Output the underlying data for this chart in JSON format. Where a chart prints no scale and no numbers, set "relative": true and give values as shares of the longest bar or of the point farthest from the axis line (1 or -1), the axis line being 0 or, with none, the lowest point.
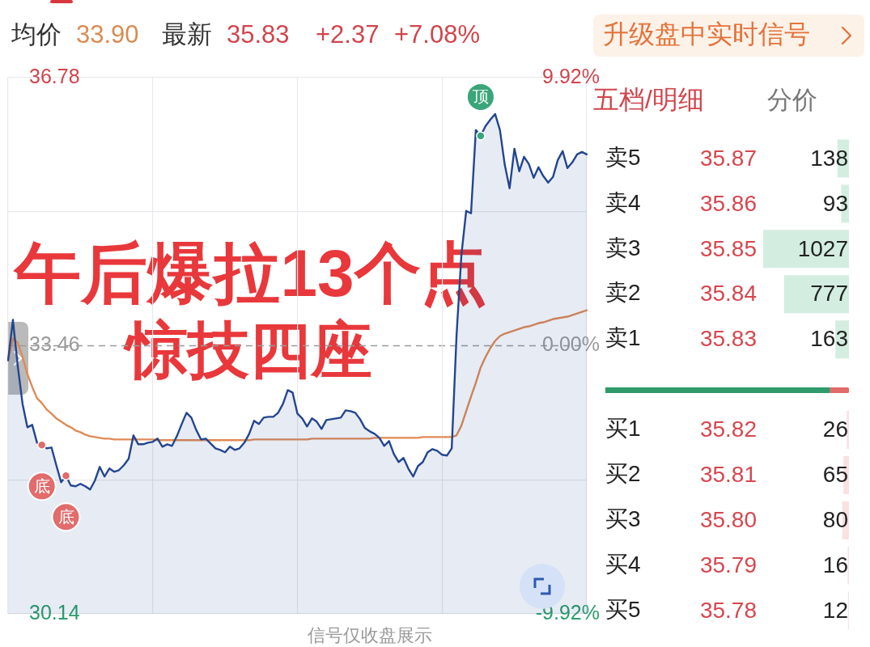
{
  "chart_data": [
    {
      "type": "line",
      "title": "午后爆拉13个点",
      "subtitle": "惊技四座",
      "categories": [
        null,
        null,
        null,
        null,
        null,
        null,
        null,
        null,
        null,
        null,
        null,
        null,
        null,
        null,
        null,
        null,
        null,
        null,
        null,
        null,
        null,
        null,
        null,
        null,
        null,
        null,
        null,
        null,
        null,
        null,
        null,
        null,
        null,
        null,
        null,
        null,
        null,
        null,
        null,
        null,
        null,
        null,
        null,
        null,
        null,
        null,
        null,
        null,
        null,
        null,
        null,
        null,
        null,
        null,
        null,
        null,
        null,
        null,
        null,
        null,
        null,
        null,
        null,
        null,
        null,
        null,
        null,
        null,
        null,
        null,
        null,
        null,
        null,
        null,
        null,
        null,
        null,
        null,
        null,
        null,
        null,
        null,
        null,
        null,
        null,
        null,
        null,
        null,
        null,
        null,
        null,
        null,
        null,
        null,
        null,
        null,
        null,
        null,
        null,
        null,
        null,
        null,
        null,
        null,
        null,
        null,
        null,
        null,
        null,
        null,
        null,
        null,
        null,
        null,
        null,
        null,
        null,
        null,
        null,
        null,
        null
      ],
      "series": [
        {
          "type": "area",
          "color": "#23468f",
          "values": [
            33.28,
            33.78,
            33.21,
            32.74,
            32.45,
            32.48,
            32.26,
            32.23,
            32.19,
            32.2,
            31.98,
            31.77,
            31.85,
            31.73,
            31.72,
            31.75,
            31.72,
            31.68,
            31.79,
            31.96,
            31.84,
            31.94,
            31.9,
            31.92,
            31.98,
            32.06,
            32.35,
            32.24,
            32.24,
            32.26,
            32.27,
            32.31,
            32.21,
            32.24,
            32.22,
            32.34,
            32.49,
            32.63,
            32.57,
            32.42,
            32.3,
            32.31,
            32.25,
            32.19,
            32.17,
            32.14,
            32.21,
            32.17,
            32.19,
            32.26,
            32.37,
            32.53,
            32.49,
            32.57,
            32.58,
            32.58,
            32.63,
            32.74,
            32.91,
            32.88,
            32.62,
            32.56,
            32.46,
            32.56,
            32.52,
            32.43,
            32.54,
            32.55,
            32.56,
            32.57,
            32.66,
            32.65,
            32.63,
            32.55,
            32.44,
            32.4,
            32.37,
            32.32,
            32.22,
            32.28,
            32.12,
            32.02,
            32.07,
            31.94,
            31.84,
            31.97,
            32.02,
            32.14,
            32.18,
            32.16,
            32.11,
            32.1,
            32.19,
            33.59,
            34.58,
            35.13,
            35.1,
            36.13,
            36.06,
            36.18,
            36.26,
            36.33,
            36.13,
            35.7,
            35.41,
            35.9,
            35.62,
            35.8,
            35.71,
            35.54,
            35.67,
            35.56,
            35.48,
            35.55,
            35.76,
            35.87,
            35.66,
            35.73,
            35.83,
            35.86,
            35.83
          ]
        },
        {
          "color": "#e08a55",
          "values": [
            33.28,
            33.55,
            33.5,
            33.32,
            33.11,
            32.95,
            32.81,
            32.75,
            32.67,
            32.62,
            32.56,
            32.52,
            32.48,
            32.45,
            32.41,
            32.39,
            32.36,
            32.34,
            32.33,
            32.32,
            32.31,
            32.31,
            32.3,
            32.3,
            32.3,
            32.3,
            32.3,
            32.3,
            32.3,
            32.3,
            32.3,
            32.29,
            32.29,
            32.29,
            32.29,
            32.29,
            32.29,
            32.29,
            32.29,
            32.29,
            32.29,
            32.29,
            32.29,
            32.29,
            32.29,
            32.29,
            32.29,
            32.29,
            32.29,
            32.29,
            32.29,
            32.3,
            32.3,
            32.3,
            32.3,
            32.3,
            32.3,
            32.3,
            32.3,
            32.3,
            32.3,
            32.3,
            32.3,
            32.31,
            32.31,
            32.31,
            32.31,
            32.31,
            32.31,
            32.31,
            32.31,
            32.31,
            32.31,
            32.31,
            32.31,
            32.31,
            32.32,
            32.32,
            32.32,
            32.32,
            32.32,
            32.32,
            32.32,
            32.32,
            32.32,
            32.32,
            32.33,
            32.33,
            32.33,
            32.33,
            32.33,
            32.33,
            32.33,
            32.35,
            32.47,
            32.65,
            32.83,
            33.0,
            33.19,
            33.32,
            33.43,
            33.52,
            33.58,
            33.61,
            33.63,
            33.65,
            33.67,
            33.69,
            33.7,
            33.72,
            33.74,
            33.75,
            33.77,
            33.79,
            33.8,
            33.81,
            33.82,
            33.84,
            33.86,
            33.88,
            33.9
          ]
        }
      ],
      "ylim": [
        30.14,
        36.78
      ],
      "yticks": [
        30.14,
        {
          "value": 31.8,
          "label": null
        },
        33.46,
        {
          "value": 35.12,
          "label": null
        },
        36.78
      ],
      "y2lim": [
        -9.92,
        9.92
      ],
      "y2ticks": [
        {
          "value": -9.92,
          "label": "-9.92%"
        },
        {
          "value": 0,
          "label": "0.00%"
        },
        {
          "value": 9.92,
          "label": "9.92%"
        }
      ],
      "grid": true,
      "ref_lines": [
        {
          "axis": "y",
          "value": 33.46,
          "line_style": "dashed",
          "color": "#9a9a9a"
        }
      ],
      "annotations": [
        "均价",
        "33.90",
        "最新",
        "35.83",
        "+2.37",
        "+7.08%",
        "升级盘中实时信号",
        "信号仅收盘展示",
        {
          "text": "底",
          "y": 32.23
        },
        {
          "text": "底",
          "y": 31.85
        },
        {
          "text": "顶",
          "y": 36.06
        }
      ]
    },
    {
      "type": "bar",
      "orientation": "horizontal",
      "title": "五档/明细",
      "categories": [
        "卖5",
        "卖4",
        "卖3",
        "卖2",
        "卖1",
        null,
        "买1",
        "买2",
        "买3",
        "买4",
        "买5"
      ],
      "values": [
        138,
        93,
        1027,
        777,
        163,
        null,
        26,
        65,
        80,
        16,
        12
      ],
      "colors": [
        "#d3eee0",
        "#d3eee0",
        "#d3eee0",
        "#d3eee0",
        "#d3eee0",
        null,
        "#fbe0e0",
        "#fbe0e0",
        "#fbe0e0",
        "#fbe0e0",
        "#fbe0e0"
      ],
      "data_labels": true,
      "tick_labels": "y",
      "annotations": [
        "分价",
        "35.87",
        "35.86",
        "35.85",
        "35.84",
        "35.83",
        "35.82",
        "35.81",
        "35.80",
        "35.79",
        "35.78"
      ]
    },
    {
      "type": "bar",
      "orientation": "horizontal",
      "stacked": true,
      "relative": true,
      "tick_labels": false,
      "categories": [
        null
      ],
      "series": [
        {
          "color": "#2e9b6a",
          "values": [
            0.92
          ]
        },
        {
          "color": "#e06a6a",
          "values": [
            0.08
          ]
        }
      ]
    }
  ]
}
